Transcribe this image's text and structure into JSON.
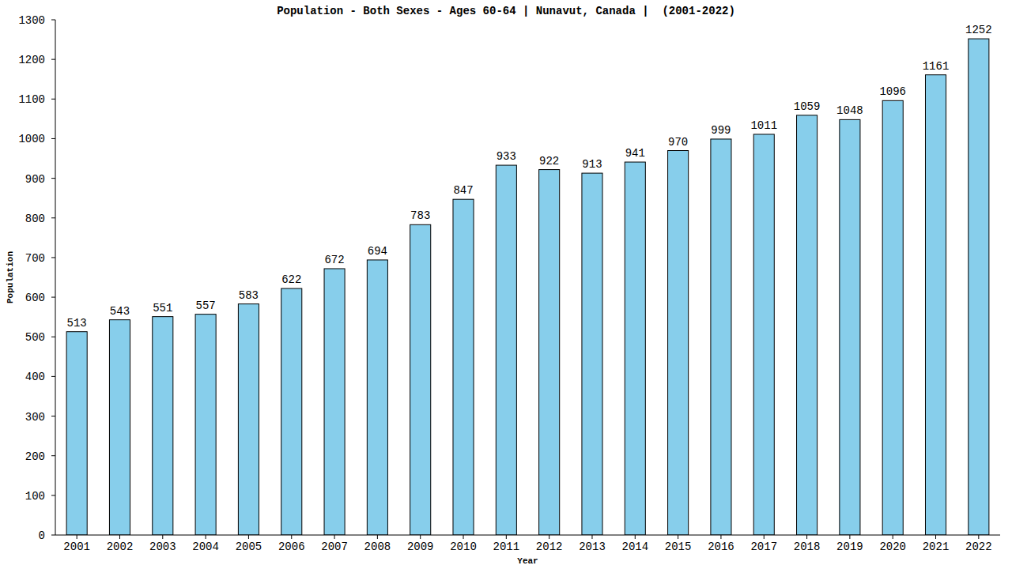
{
  "chart_data": {
    "type": "bar",
    "title": "Population - Both Sexes - Ages 60-64 | Nunavut, Canada |  (2001-2022)",
    "x_label": "Year",
    "y_label": "Population",
    "categories": [
      "2001",
      "2002",
      "2003",
      "2004",
      "2005",
      "2006",
      "2007",
      "2008",
      "2009",
      "2010",
      "2011",
      "2012",
      "2013",
      "2014",
      "2015",
      "2016",
      "2017",
      "2018",
      "2019",
      "2020",
      "2021",
      "2022"
    ],
    "values": [
      513,
      543,
      551,
      557,
      583,
      622,
      672,
      694,
      783,
      847,
      933,
      922,
      913,
      941,
      970,
      999,
      1011,
      1059,
      1048,
      1096,
      1161,
      1252
    ],
    "color": "#87ceeb",
    "ylim": [
      0,
      1300
    ],
    "yticks": [
      0,
      100,
      200,
      300,
      400,
      500,
      600,
      700,
      800,
      900,
      1000,
      1100,
      1200,
      1300
    ],
    "grid": false,
    "data_labels": true
  }
}
